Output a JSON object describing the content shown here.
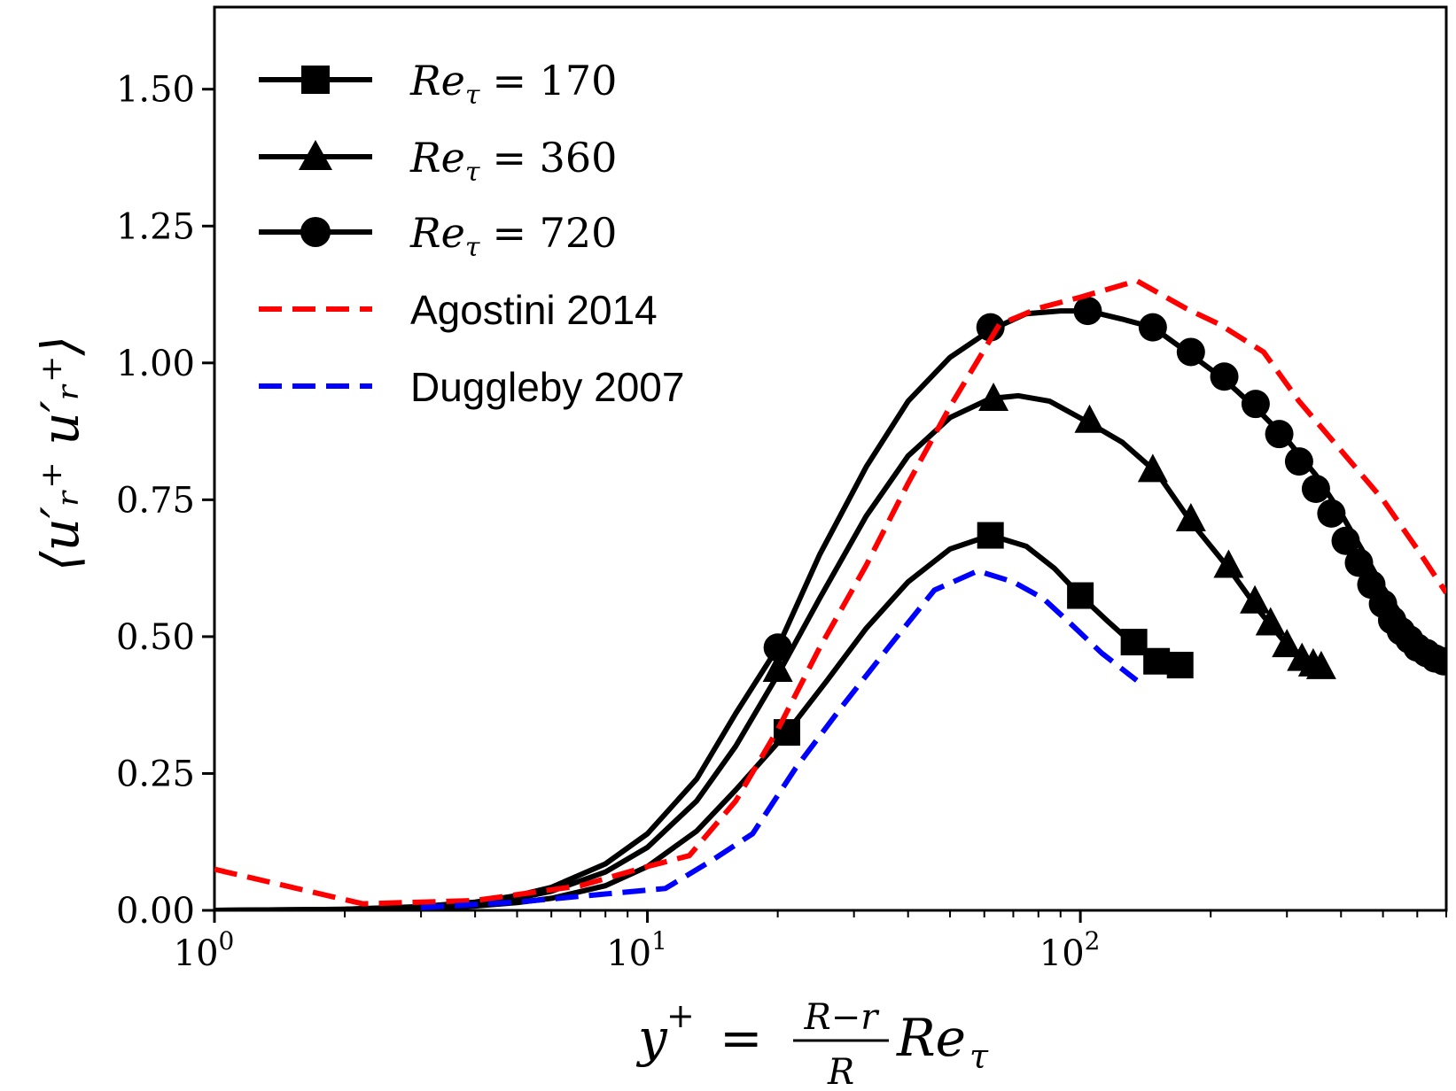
{
  "chart_data": {
    "type": "line",
    "title": "",
    "x_scale": "log",
    "xlim": [
      1,
      700
    ],
    "ylim": [
      0,
      1.65
    ],
    "grid": false,
    "legend_position": "top-left",
    "xlabel": {
      "lhs": "y",
      "lhs_sup": "+",
      "equals": "=",
      "frac_num": "R−r",
      "frac_den": "R",
      "rhs": "Re",
      "rhs_sub": "τ"
    },
    "ylabel": "⟨u′ᵣ⁺ u′ᵣ⁺⟩",
    "y_ticks": [
      {
        "value": 0.0,
        "label": "0.00"
      },
      {
        "value": 0.25,
        "label": "0.25"
      },
      {
        "value": 0.5,
        "label": "0.50"
      },
      {
        "value": 0.75,
        "label": "0.75"
      },
      {
        "value": 1.0,
        "label": "1.00"
      },
      {
        "value": 1.25,
        "label": "1.25"
      },
      {
        "value": 1.5,
        "label": "1.50"
      }
    ],
    "x_major_ticks": [
      {
        "value": 1,
        "base": "10",
        "exp": "0"
      },
      {
        "value": 10,
        "base": "10",
        "exp": "1"
      },
      {
        "value": 100,
        "base": "10",
        "exp": "2"
      }
    ],
    "series": [
      {
        "name": "Re_τ = 170",
        "legend": {
          "lhs": "Re",
          "sub": "τ",
          "rhs": "= 170"
        },
        "color": "#000000",
        "line_style": "solid",
        "marker": "square",
        "x": [
          1,
          2,
          3,
          4,
          5,
          6,
          8,
          10,
          13,
          16,
          21,
          26,
          32,
          40,
          50,
          62,
          75,
          87,
          100,
          115,
          133,
          150,
          170
        ],
        "y": [
          0.0,
          0.001,
          0.004,
          0.008,
          0.014,
          0.022,
          0.045,
          0.08,
          0.145,
          0.22,
          0.325,
          0.42,
          0.515,
          0.6,
          0.66,
          0.685,
          0.665,
          0.625,
          0.575,
          0.53,
          0.485,
          0.455,
          0.445
        ],
        "markers_x": [
          21,
          62,
          100,
          133,
          150,
          170
        ],
        "markers_y": [
          0.325,
          0.685,
          0.575,
          0.49,
          0.455,
          0.448
        ]
      },
      {
        "name": "Re_τ = 360",
        "legend": {
          "lhs": "Re",
          "sub": "τ",
          "rhs": "= 360"
        },
        "color": "#000000",
        "line_style": "solid",
        "marker": "triangle",
        "x": [
          1,
          2,
          3,
          4,
          5,
          6,
          8,
          10,
          13,
          16,
          20,
          25,
          32,
          40,
          50,
          62,
          72,
          85,
          105,
          125,
          150,
          180,
          220,
          260,
          300,
          340,
          360
        ],
        "y": [
          0.0,
          0.002,
          0.006,
          0.012,
          0.022,
          0.035,
          0.07,
          0.115,
          0.2,
          0.3,
          0.43,
          0.57,
          0.72,
          0.83,
          0.9,
          0.935,
          0.94,
          0.93,
          0.89,
          0.855,
          0.8,
          0.71,
          0.625,
          0.545,
          0.485,
          0.455,
          0.445
        ],
        "markers_x": [
          20,
          63,
          105,
          147,
          180,
          220,
          253,
          275,
          300,
          325,
          345,
          360
        ],
        "markers_y": [
          0.44,
          0.935,
          0.895,
          0.805,
          0.715,
          0.63,
          0.565,
          0.525,
          0.485,
          0.46,
          0.45,
          0.445
        ]
      },
      {
        "name": "Re_τ = 720",
        "legend": {
          "lhs": "Re",
          "sub": "τ",
          "rhs": "= 720"
        },
        "color": "#000000",
        "line_style": "solid",
        "marker": "circle",
        "x": [
          1,
          2,
          3,
          4,
          5,
          6,
          8,
          10,
          13,
          16,
          20,
          25,
          32,
          40,
          50,
          62,
          75,
          90,
          104,
          125,
          147,
          180,
          215,
          260,
          300,
          350,
          400,
          450,
          500,
          560,
          620,
          680,
          700
        ],
        "y": [
          0.0,
          0.002,
          0.007,
          0.015,
          0.027,
          0.042,
          0.085,
          0.14,
          0.24,
          0.36,
          0.48,
          0.65,
          0.81,
          0.93,
          1.01,
          1.06,
          1.09,
          1.095,
          1.095,
          1.08,
          1.065,
          1.015,
          0.97,
          0.91,
          0.86,
          0.795,
          0.725,
          0.655,
          0.59,
          0.53,
          0.49,
          0.465,
          0.46
        ],
        "markers_x": [
          20,
          62,
          104,
          147,
          180,
          215,
          254,
          288,
          320,
          350,
          380,
          410,
          440,
          470,
          500,
          525,
          550,
          575,
          600,
          630,
          660,
          690
        ],
        "markers_y": [
          0.48,
          1.065,
          1.095,
          1.065,
          1.02,
          0.975,
          0.925,
          0.87,
          0.82,
          0.77,
          0.725,
          0.675,
          0.635,
          0.595,
          0.56,
          0.53,
          0.51,
          0.495,
          0.48,
          0.47,
          0.46,
          0.455
        ]
      },
      {
        "name": "Agostini 2014",
        "legend": {
          "text": "Agostini 2014"
        },
        "color": "#ff0000",
        "line_style": "dashed",
        "marker": "none",
        "x": [
          1,
          2.2,
          4,
          7,
          10,
          12.5,
          16,
          20,
          25,
          32,
          40,
          50,
          65,
          80,
          100,
          135,
          175,
          210,
          265,
          320,
          400,
          500,
          600,
          700
        ],
        "y": [
          0.075,
          0.012,
          0.018,
          0.045,
          0.08,
          0.1,
          0.2,
          0.33,
          0.48,
          0.63,
          0.78,
          0.92,
          1.07,
          1.1,
          1.12,
          1.15,
          1.1,
          1.07,
          1.02,
          0.93,
          0.84,
          0.75,
          0.66,
          0.58
        ],
        "markers_x": [],
        "markers_y": []
      },
      {
        "name": "Duggleby 2007",
        "legend": {
          "text": "Duggleby 2007"
        },
        "color": "#0000ff",
        "line_style": "dashed",
        "marker": "none",
        "x": [
          3,
          5,
          8,
          11,
          14,
          17.5,
          22,
          28,
          36,
          46,
          58,
          70,
          82,
          96,
          112,
          135
        ],
        "y": [
          0.005,
          0.015,
          0.03,
          0.04,
          0.09,
          0.14,
          0.26,
          0.37,
          0.48,
          0.585,
          0.62,
          0.6,
          0.57,
          0.52,
          0.47,
          0.42
        ],
        "markers_x": [],
        "markers_y": []
      }
    ]
  }
}
